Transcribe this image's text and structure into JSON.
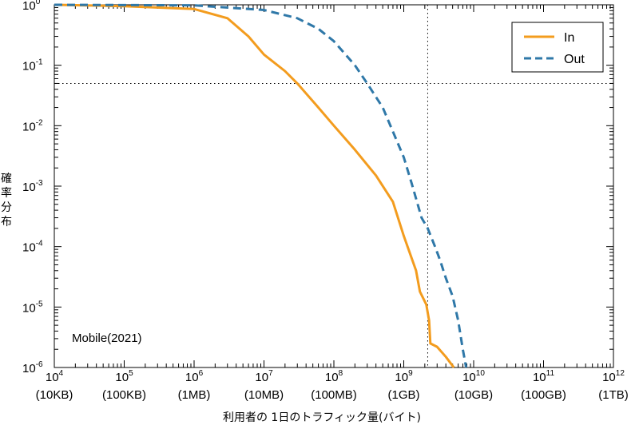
{
  "chart_data": {
    "type": "line",
    "scale": {
      "x": "log",
      "y": "log"
    },
    "xlim": [
      10000,
      1000000000000
    ],
    "ylim": [
      1e-06,
      1
    ],
    "x_ticks": [
      {
        "base": "10",
        "exp": "4",
        "unit": "(10KB)"
      },
      {
        "base": "10",
        "exp": "5",
        "unit": "(100KB)"
      },
      {
        "base": "10",
        "exp": "6",
        "unit": "(1MB)"
      },
      {
        "base": "10",
        "exp": "7",
        "unit": "(10MB)"
      },
      {
        "base": "10",
        "exp": "8",
        "unit": "(100MB)"
      },
      {
        "base": "10",
        "exp": "9",
        "unit": "(1GB)"
      },
      {
        "base": "10",
        "exp": "10",
        "unit": "(10GB)"
      },
      {
        "base": "10",
        "exp": "11",
        "unit": "(100GB)"
      },
      {
        "base": "10",
        "exp": "12",
        "unit": "(1TB)"
      }
    ],
    "y_ticks": [
      {
        "base": "10",
        "exp": "0"
      },
      {
        "base": "10",
        "exp": "-1"
      },
      {
        "base": "10",
        "exp": "-2"
      },
      {
        "base": "10",
        "exp": "-3"
      },
      {
        "base": "10",
        "exp": "-4"
      },
      {
        "base": "10",
        "exp": "-5"
      },
      {
        "base": "10",
        "exp": "-6"
      }
    ],
    "xlabel": "利用者の 1日のトラフィック量(バイト)",
    "ylabel_chars": [
      "確",
      "率",
      "分",
      "布"
    ],
    "annotation": "Mobile(2021)",
    "reference_lines": {
      "vertical_x": 2200000000,
      "horizontal_y": 0.05
    },
    "legend": {
      "position": "top-right",
      "entries": [
        "In",
        "Out"
      ]
    },
    "series": [
      {
        "name": "In",
        "color": "#f39c1e",
        "dash": "solid",
        "points": [
          [
            10000,
            1
          ],
          [
            100000,
            0.95
          ],
          [
            1000000,
            0.85
          ],
          [
            3000000,
            0.6
          ],
          [
            6000000,
            0.3
          ],
          [
            10000000,
            0.15
          ],
          [
            20000000,
            0.08
          ],
          [
            30000000,
            0.05
          ],
          [
            60000000,
            0.02
          ],
          [
            100000000,
            0.01
          ],
          [
            200000000,
            0.004
          ],
          [
            400000000,
            0.0015
          ],
          [
            700000000,
            0.00055
          ],
          [
            1000000000,
            0.00015
          ],
          [
            1500000000,
            4e-05
          ],
          [
            1700000000,
            1.8e-05
          ],
          [
            2100000000,
            1.1e-05
          ],
          [
            2300000000,
            6e-06
          ],
          [
            2400000000,
            2.5e-06
          ],
          [
            3000000000,
            2.2e-06
          ],
          [
            4000000000,
            1.5e-06
          ],
          [
            5200000000,
            1e-06
          ]
        ]
      },
      {
        "name": "Out",
        "color": "#2f78a8",
        "dash": "dashed",
        "points": [
          [
            10000,
            1
          ],
          [
            1000000,
            0.98
          ],
          [
            10000000,
            0.82
          ],
          [
            30000000,
            0.6
          ],
          [
            60000000,
            0.4
          ],
          [
            100000000,
            0.25
          ],
          [
            200000000,
            0.1
          ],
          [
            300000000,
            0.05
          ],
          [
            500000000,
            0.02
          ],
          [
            700000000,
            0.008
          ],
          [
            1000000000,
            0.003
          ],
          [
            1300000000,
            0.0011
          ],
          [
            1800000000,
            0.0003
          ],
          [
            2200000000,
            0.0002
          ],
          [
            2800000000,
            0.0001
          ],
          [
            3300000000,
            6e-05
          ],
          [
            4000000000,
            3e-05
          ],
          [
            5000000000,
            1.5e-05
          ],
          [
            6000000000,
            6e-06
          ],
          [
            7000000000,
            2e-06
          ],
          [
            7800000000,
            1e-06
          ]
        ]
      }
    ]
  }
}
